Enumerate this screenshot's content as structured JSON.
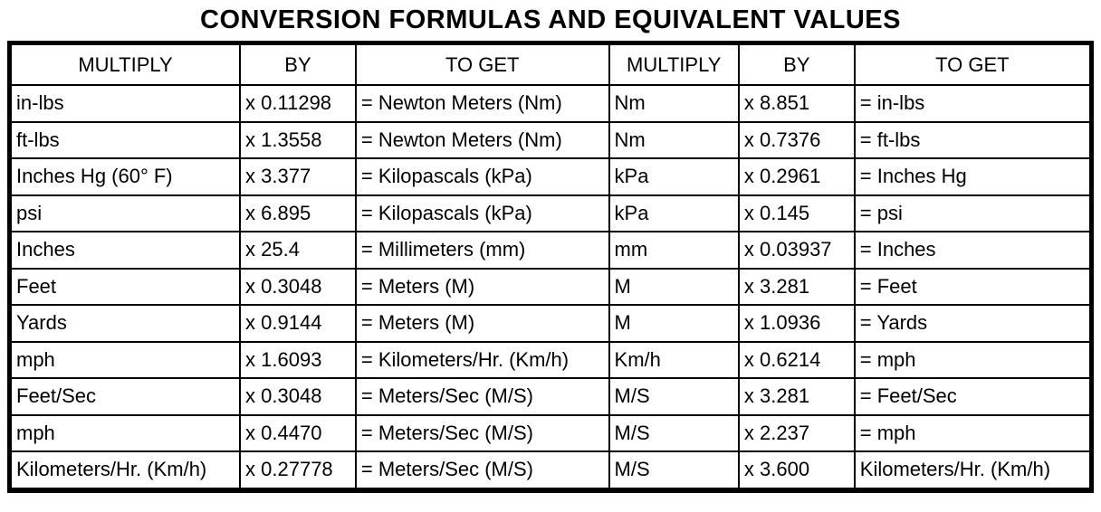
{
  "title": "CONVERSION FORMULAS AND EQUIVALENT VALUES",
  "colors": {
    "text": "#000000",
    "border": "#000000",
    "background": "#ffffff"
  },
  "table": {
    "headers": [
      "MULTIPLY",
      "BY",
      "TO GET",
      "MULTIPLY",
      "BY",
      "TO GET"
    ],
    "rows": [
      [
        "in-lbs",
        "x 0.11298",
        "= Newton Meters (Nm)",
        "Nm",
        "x 8.851",
        "= in-lbs"
      ],
      [
        "ft-lbs",
        "x 1.3558",
        "= Newton Meters (Nm)",
        "Nm",
        "x 0.7376",
        "= ft-lbs"
      ],
      [
        "Inches Hg (60° F)",
        "x 3.377",
        "= Kilopascals (kPa)",
        "kPa",
        "x 0.2961",
        "= Inches Hg"
      ],
      [
        "psi",
        "x 6.895",
        "= Kilopascals (kPa)",
        "kPa",
        "x 0.145",
        "= psi"
      ],
      [
        "Inches",
        "x 25.4",
        "= Millimeters (mm)",
        "mm",
        "x 0.03937",
        "= Inches"
      ],
      [
        "Feet",
        "x 0.3048",
        "= Meters (M)",
        "M",
        "x 3.281",
        "= Feet"
      ],
      [
        "Yards",
        "x 0.9144",
        "= Meters (M)",
        "M",
        "x 1.0936",
        "= Yards"
      ],
      [
        "mph",
        "x 1.6093",
        "= Kilometers/Hr. (Km/h)",
        "Km/h",
        "x 0.6214",
        "= mph"
      ],
      [
        "Feet/Sec",
        "x 0.3048",
        "= Meters/Sec (M/S)",
        "M/S",
        "x 3.281",
        "= Feet/Sec"
      ],
      [
        "mph",
        "x 0.4470",
        "= Meters/Sec (M/S)",
        "M/S",
        "x 2.237",
        "= mph"
      ],
      [
        "Kilometers/Hr. (Km/h)",
        "x 0.27778",
        "= Meters/Sec (M/S)",
        "M/S",
        "x 3.600",
        "Kilometers/Hr. (Km/h)"
      ]
    ]
  }
}
